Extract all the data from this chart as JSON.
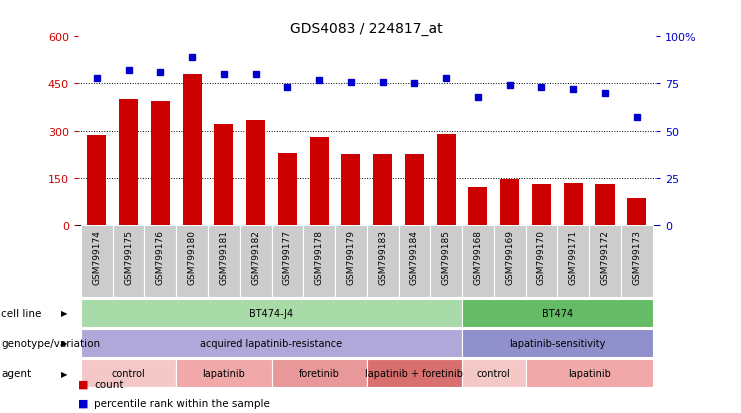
{
  "title": "GDS4083 / 224817_at",
  "samples": [
    "GSM799174",
    "GSM799175",
    "GSM799176",
    "GSM799180",
    "GSM799181",
    "GSM799182",
    "GSM799177",
    "GSM799178",
    "GSM799179",
    "GSM799183",
    "GSM799184",
    "GSM799185",
    "GSM799168",
    "GSM799169",
    "GSM799170",
    "GSM799171",
    "GSM799172",
    "GSM799173"
  ],
  "counts": [
    285,
    400,
    395,
    480,
    320,
    335,
    230,
    280,
    225,
    225,
    225,
    290,
    120,
    145,
    130,
    135,
    130,
    85
  ],
  "percentiles": [
    78,
    82,
    81,
    89,
    80,
    80,
    73,
    77,
    76,
    76,
    75,
    78,
    68,
    74,
    73,
    72,
    70,
    57
  ],
  "bar_color": "#cc0000",
  "dot_color": "#0000cc",
  "ylim_left": [
    0,
    600
  ],
  "ylim_right": [
    0,
    100
  ],
  "yticks_left": [
    0,
    150,
    300,
    450,
    600
  ],
  "yticks_right": [
    0,
    25,
    50,
    75,
    100
  ],
  "ytick_labels_right": [
    "0",
    "25",
    "50",
    "75",
    "100%"
  ],
  "cell_line_groups": [
    {
      "label": "BT474-J4",
      "start": 0,
      "end": 11,
      "color": "#a8dba8"
    },
    {
      "label": "BT474",
      "start": 12,
      "end": 17,
      "color": "#66bb66"
    }
  ],
  "genotype_groups": [
    {
      "label": "acquired lapatinib-resistance",
      "start": 0,
      "end": 11,
      "color": "#b0a8d8"
    },
    {
      "label": "lapatinib-sensitivity",
      "start": 12,
      "end": 17,
      "color": "#9090cc"
    }
  ],
  "agent_groups": [
    {
      "label": "control",
      "start": 0,
      "end": 2,
      "color": "#f5c8c8"
    },
    {
      "label": "lapatinib",
      "start": 3,
      "end": 5,
      "color": "#f0a8a8"
    },
    {
      "label": "foretinib",
      "start": 6,
      "end": 8,
      "color": "#e89898"
    },
    {
      "label": "lapatinib + foretinib",
      "start": 9,
      "end": 11,
      "color": "#d87070"
    },
    {
      "label": "control",
      "start": 12,
      "end": 13,
      "color": "#f5c8c8"
    },
    {
      "label": "lapatinib",
      "start": 14,
      "end": 17,
      "color": "#f0a8a8"
    }
  ],
  "row_labels": [
    "cell line",
    "genotype/variation",
    "agent"
  ],
  "xtick_bg_color": "#cccccc",
  "legend_count_color": "#cc0000",
  "legend_dot_color": "#0000cc"
}
